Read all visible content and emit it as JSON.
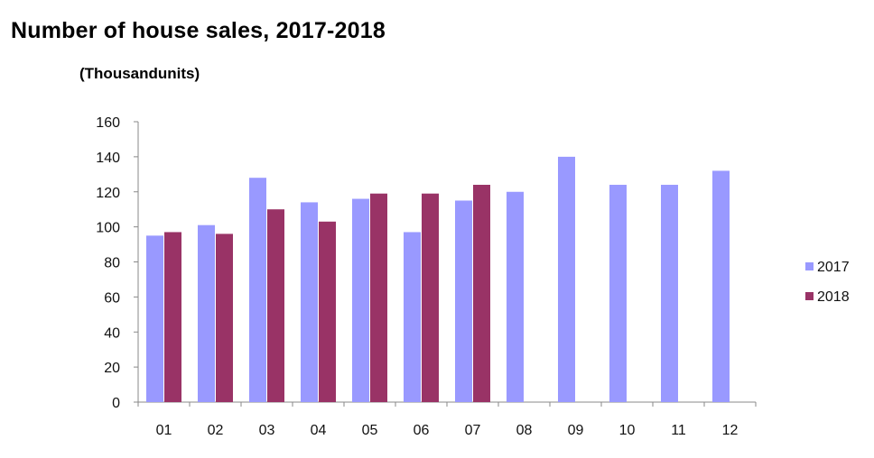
{
  "chart_data": {
    "type": "bar",
    "title": "Number of house sales, 2017-2018",
    "unit_label": "(Thousandunits)",
    "xlabel": "",
    "ylabel": "",
    "categories": [
      "01",
      "02",
      "03",
      "04",
      "05",
      "06",
      "07",
      "08",
      "09",
      "10",
      "11",
      "12"
    ],
    "series": [
      {
        "name": "2017",
        "color": "#9999ff",
        "values": [
          95,
          101,
          128,
          114,
          116,
          97,
          115,
          120,
          140,
          124,
          124,
          132
        ]
      },
      {
        "name": "2018",
        "color": "#993366",
        "values": [
          97,
          96,
          110,
          103,
          119,
          119,
          124,
          null,
          null,
          null,
          null,
          null
        ]
      }
    ],
    "ylim": [
      0,
      160
    ],
    "yticks": [
      0,
      20,
      40,
      60,
      80,
      100,
      120,
      140,
      160
    ],
    "grid": false,
    "legend_position": "right"
  }
}
